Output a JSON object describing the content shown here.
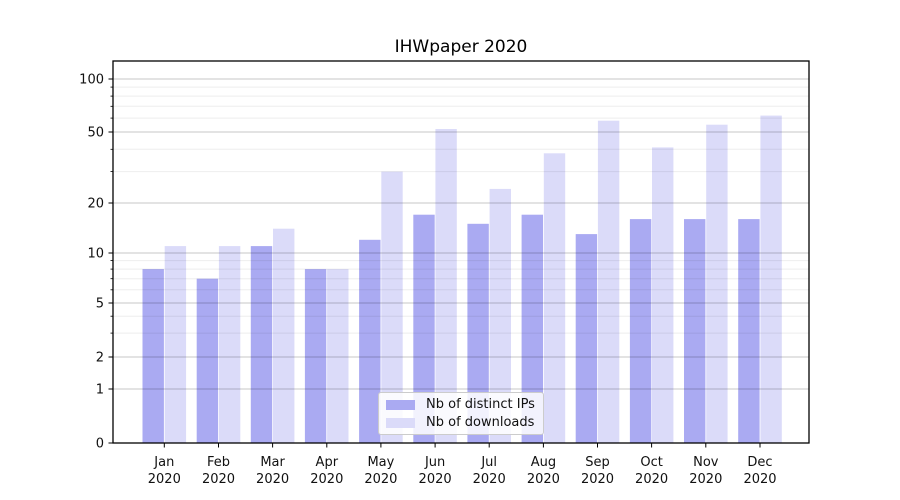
{
  "chart_data": {
    "type": "bar",
    "title": "IHWpaper 2020",
    "categories": [
      "Jan",
      "Feb",
      "Mar",
      "Apr",
      "May",
      "Jun",
      "Jul",
      "Aug",
      "Sep",
      "Oct",
      "Nov",
      "Dec"
    ],
    "category_year": "2020",
    "series": [
      {
        "name": "Nb of distinct IPs",
        "color": "#aaaaf2",
        "values": [
          8,
          7,
          11,
          8,
          12,
          17,
          15,
          17,
          13,
          16,
          16,
          16
        ]
      },
      {
        "name": "Nb of downloads",
        "color": "#dbdbf9",
        "values": [
          11,
          11,
          14,
          8,
          30,
          52,
          24,
          38,
          58,
          41,
          55,
          62
        ]
      }
    ],
    "yscale": "log",
    "ylim": [
      0,
      130
    ],
    "y_ticks": [
      0,
      1,
      2,
      5,
      10,
      20,
      50,
      100
    ],
    "y_minor_ticks": [
      3,
      4,
      6,
      7,
      8,
      9,
      30,
      40,
      60,
      70,
      80,
      90
    ],
    "grid": true,
    "legend_position": "lower center inside axes"
  },
  "colors": {
    "bar_ips": "#aaaaf2",
    "bar_downloads": "#dbdbf9",
    "major_grid": "#c6c6c6",
    "minor_grid": "#ececec",
    "axis": "#000000",
    "background": "#ffffff"
  }
}
